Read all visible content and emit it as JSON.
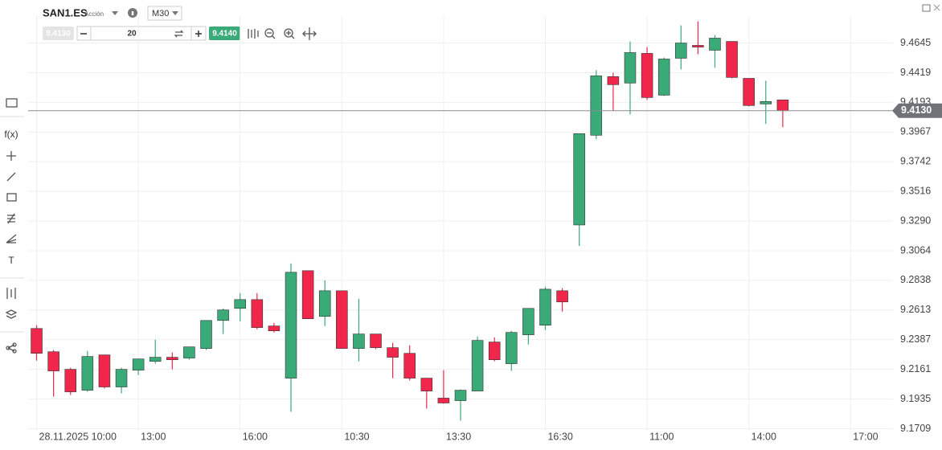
{
  "header": {
    "symbol": "SAN1.ES",
    "instrument_type": "Acción",
    "timeframe": "M30",
    "sell_price": "9.4130",
    "quantity": "20",
    "buy_price": "9.4140"
  },
  "chart_data": {
    "type": "candlestick",
    "up_color": "#3aaa78",
    "down_color": "#f0274a",
    "grid": true,
    "open": [
      9.2472,
      9.2295,
      9.2161,
      9.2002,
      9.2271,
      9.2027,
      9.2155,
      9.2222,
      9.2253,
      9.2247,
      9.232,
      9.2533,
      9.2625,
      9.2692,
      9.2491,
      9.2094,
      9.2912,
      9.2564,
      9.2759,
      9.232,
      9.243,
      9.2326,
      9.2283,
      9.2094,
      9.1942,
      9.1923,
      9.1996,
      9.2369,
      9.2204,
      9.2424,
      9.2497,
      9.2759,
      9.326,
      9.3943,
      9.4389,
      9.434,
      9.4566,
      9.4248,
      9.4529,
      9.4627,
      9.459,
      9.4657,
      9.4376,
      9.4181,
      9.4212
    ],
    "high": [
      9.2497,
      9.2308,
      9.2173,
      9.2301,
      9.2271,
      9.2173,
      9.224,
      9.2387,
      9.2289,
      9.2332,
      9.2533,
      9.2625,
      9.2741,
      9.2741,
      9.2515,
      9.2967,
      9.2912,
      9.2839,
      9.2759,
      9.2698,
      9.243,
      9.2363,
      9.2344,
      9.2094,
      9.2155,
      9.2008,
      9.2411,
      9.2405,
      9.2454,
      9.2625,
      9.279,
      9.2778,
      9.3955,
      9.4438,
      9.4419,
      9.4657,
      9.4614,
      9.4535,
      9.4779,
      9.481,
      9.4706,
      9.4657,
      9.4376,
      9.4358,
      9.4212
    ],
    "low": [
      9.2228,
      9.1954,
      9.1966,
      9.199,
      9.2015,
      9.1978,
      9.2118,
      9.2204,
      9.2161,
      9.2234,
      9.2308,
      9.243,
      9.2527,
      9.2466,
      9.2442,
      9.1838,
      9.2546,
      9.2491,
      9.232,
      9.2222,
      9.2314,
      9.2094,
      9.2076,
      9.1862,
      9.1899,
      9.1771,
      9.1996,
      9.2222,
      9.2149,
      9.235,
      9.246,
      9.2601,
      9.3101,
      9.3913,
      9.4126,
      9.4102,
      9.4212,
      9.4242,
      9.4444,
      9.456,
      9.4456,
      9.4376,
      9.4163,
      9.4029,
      9.4004
    ],
    "close": [
      9.2283,
      9.2149,
      9.199,
      9.2259,
      9.2027,
      9.2161,
      9.224,
      9.2253,
      9.2234,
      9.2332,
      9.2533,
      9.2613,
      9.2692,
      9.2479,
      9.2454,
      9.29,
      9.2546,
      9.2759,
      9.232,
      9.243,
      9.2326,
      9.2253,
      9.2094,
      9.1996,
      9.1905,
      9.2002,
      9.2381,
      9.2234,
      9.2442,
      9.2625,
      9.2771,
      9.2674,
      9.3955,
      9.4395,
      9.4328,
      9.4572,
      9.423,
      9.4523,
      9.4645,
      9.4614,
      9.4682,
      9.4383,
      9.4169,
      9.42,
      9.413
    ],
    "xlim": [
      -0.5,
      50.5
    ],
    "xticks": [
      {
        "value": 0,
        "label": "28.11.2025 10:00"
      },
      {
        "value": 6,
        "label": "13:00"
      },
      {
        "value": 12,
        "label": "16:00"
      },
      {
        "value": 18,
        "label": "10:30"
      },
      {
        "value": 24,
        "label": "13:30"
      },
      {
        "value": 30,
        "label": "16:30"
      },
      {
        "value": 36,
        "label": "11:00"
      },
      {
        "value": 42,
        "label": "14:00"
      },
      {
        "value": 48,
        "label": "17:00"
      }
    ],
    "ylim": [
      9.17,
      9.485
    ],
    "yticks": [
      9.4645,
      9.4419,
      9.4193,
      9.3967,
      9.3742,
      9.3516,
      {
        "value": 9.329,
        "label": "9.3290"
      },
      9.3064,
      9.2838,
      9.2613,
      9.2387,
      9.2161,
      9.1935,
      9.1709
    ],
    "last_price": {
      "value": 9.413,
      "label": "9.4130"
    }
  }
}
